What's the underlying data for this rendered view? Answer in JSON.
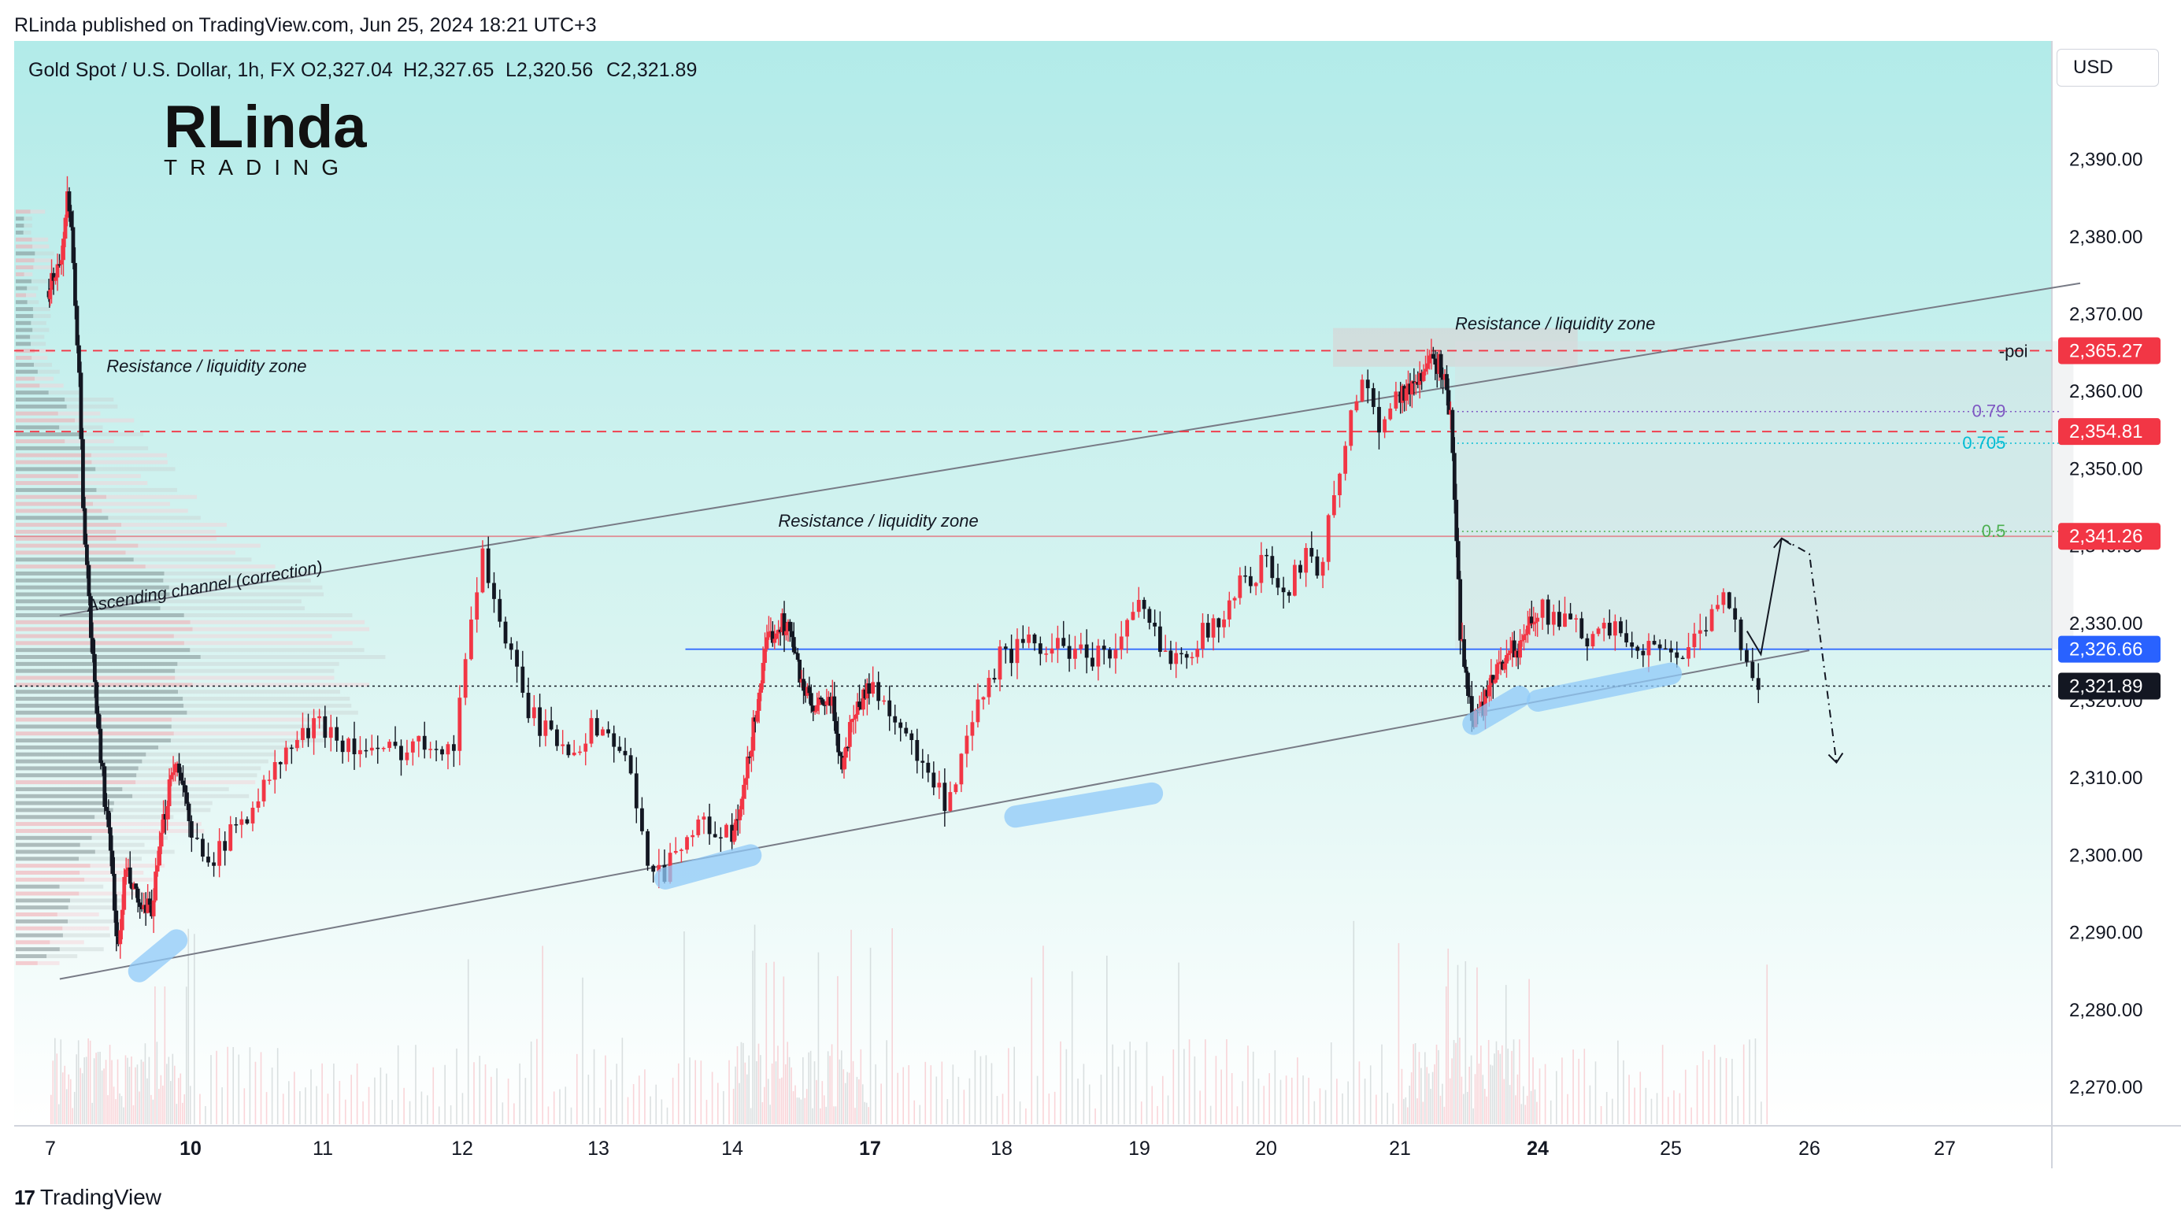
{
  "header": {
    "published": "RLinda published on TradingView.com, Jun 25, 2024 18:21 UTC+3"
  },
  "symbol": {
    "title": "Gold Spot / U.S. Dollar, 1h, FX",
    "open": "O2,327.04",
    "high": "H2,327.65",
    "low": "L2,320.56",
    "close": "C2,321.89"
  },
  "logo": {
    "line1": "RLinda",
    "line2": "TRADING"
  },
  "currency_button": "USD",
  "footer": {
    "brand": "TradingView"
  },
  "colors": {
    "bull": "#f23645",
    "bear": "#131722",
    "bg_top": "#b2ebe9",
    "bg_bottom": "#ffffff",
    "resistance": "#f23645",
    "price_line": "#2962ff",
    "support_highlight": "#90caf9",
    "poi_zone": "#d6d6d6"
  },
  "chart_data": {
    "type": "candlestick",
    "symbol": "XAUUSD",
    "timeframe": "1h",
    "ylim": [
      2262,
      2400
    ],
    "y_ticks": [
      2270,
      2280,
      2290,
      2300,
      2310,
      2320,
      2330,
      2340,
      2350,
      2360,
      2370,
      2380,
      2390
    ],
    "y_tick_labels": [
      "2,270.00",
      "2,280.00",
      "2,290.00",
      "2,300.00",
      "2,310.00",
      "2,320.00",
      "2,330.00",
      "2,340.00",
      "2,350.00",
      "2,360.00",
      "2,370.00",
      "2,380.00",
      "2,390.00"
    ],
    "x_labels": [
      {
        "label": "7",
        "day": 7,
        "bold": false
      },
      {
        "label": "10",
        "day": 10,
        "bold": true
      },
      {
        "label": "11",
        "day": 11,
        "bold": false
      },
      {
        "label": "12",
        "day": 12,
        "bold": false
      },
      {
        "label": "13",
        "day": 13,
        "bold": false
      },
      {
        "label": "14",
        "day": 14,
        "bold": false
      },
      {
        "label": "17",
        "day": 17,
        "bold": true
      },
      {
        "label": "18",
        "day": 18,
        "bold": false
      },
      {
        "label": "19",
        "day": 19,
        "bold": false
      },
      {
        "label": "20",
        "day": 20,
        "bold": false
      },
      {
        "label": "21",
        "day": 21,
        "bold": false
      },
      {
        "label": "24",
        "day": 24,
        "bold": true
      },
      {
        "label": "25",
        "day": 25,
        "bold": false
      },
      {
        "label": "26",
        "day": 26,
        "bold": false
      },
      {
        "label": "27",
        "day": 27,
        "bold": false
      }
    ],
    "price_path": [
      [
        6.9,
        2373
      ],
      [
        7.1,
        2375
      ],
      [
        7.25,
        2378
      ],
      [
        7.35,
        2385
      ],
      [
        7.45,
        2380
      ],
      [
        7.6,
        2364
      ],
      [
        7.7,
        2345
      ],
      [
        7.85,
        2330
      ],
      [
        8.0,
        2318
      ],
      [
        8.2,
        2305
      ],
      [
        8.35,
        2296
      ],
      [
        8.45,
        2287
      ],
      [
        8.6,
        2298
      ],
      [
        8.8,
        2295
      ],
      [
        9.0,
        2292
      ],
      [
        9.2,
        2294
      ],
      [
        9.4,
        2303
      ],
      [
        9.6,
        2312
      ],
      [
        9.8,
        2311
      ],
      [
        10.0,
        2302
      ],
      [
        10.2,
        2300
      ],
      [
        10.4,
        2305
      ],
      [
        10.6,
        2310
      ],
      [
        10.8,
        2315
      ],
      [
        11.0,
        2317
      ],
      [
        11.2,
        2314
      ],
      [
        11.4,
        2313
      ],
      [
        11.6,
        2314
      ],
      [
        11.8,
        2315
      ],
      [
        11.95,
        2314
      ],
      [
        12.05,
        2330
      ],
      [
        12.15,
        2339
      ],
      [
        12.3,
        2329
      ],
      [
        12.45,
        2320
      ],
      [
        12.6,
        2316
      ],
      [
        12.8,
        2314
      ],
      [
        13.0,
        2317
      ],
      [
        13.2,
        2313
      ],
      [
        13.35,
        2300
      ],
      [
        13.5,
        2298
      ],
      [
        13.6,
        2302
      ],
      [
        13.8,
        2304
      ],
      [
        14.0,
        2302
      ],
      [
        14.2,
        2306
      ],
      [
        14.4,
        2314
      ],
      [
        14.6,
        2322
      ],
      [
        14.8,
        2328
      ],
      [
        15.0,
        2330
      ],
      [
        15.2,
        2330
      ],
      [
        15.4,
        2325
      ],
      [
        15.6,
        2321
      ],
      [
        15.8,
        2318
      ],
      [
        16.0,
        2320
      ],
      [
        16.2,
        2319
      ],
      [
        16.4,
        2311
      ],
      [
        16.6,
        2318
      ],
      [
        16.8,
        2320
      ],
      [
        17.0,
        2322
      ],
      [
        17.2,
        2318
      ],
      [
        17.4,
        2311
      ],
      [
        17.6,
        2306
      ],
      [
        17.8,
        2318
      ],
      [
        18.0,
        2326
      ],
      [
        18.2,
        2327
      ],
      [
        18.4,
        2327
      ],
      [
        18.6,
        2326
      ],
      [
        18.8,
        2326
      ],
      [
        19.0,
        2332
      ],
      [
        19.2,
        2326
      ],
      [
        19.4,
        2327
      ],
      [
        19.6,
        2330
      ],
      [
        19.8,
        2335
      ],
      [
        20.0,
        2338
      ],
      [
        20.15,
        2333
      ],
      [
        20.3,
        2340
      ],
      [
        20.4,
        2337
      ],
      [
        20.55,
        2350
      ],
      [
        20.7,
        2362
      ],
      [
        20.85,
        2356
      ],
      [
        21.0,
        2360
      ],
      [
        21.2,
        2360
      ],
      [
        21.4,
        2362
      ],
      [
        21.6,
        2363
      ],
      [
        21.8,
        2364
      ],
      [
        21.95,
        2362
      ],
      [
        22.1,
        2357
      ],
      [
        22.2,
        2345
      ],
      [
        22.3,
        2330
      ],
      [
        22.45,
        2322
      ],
      [
        22.6,
        2318
      ],
      [
        22.8,
        2319
      ],
      [
        23.0,
        2322
      ],
      [
        23.2,
        2325
      ],
      [
        23.4,
        2327
      ],
      [
        23.6,
        2326
      ],
      [
        23.8,
        2330
      ],
      [
        24.0,
        2332
      ],
      [
        24.2,
        2330
      ],
      [
        24.4,
        2328
      ],
      [
        24.6,
        2329
      ],
      [
        24.8,
        2327
      ],
      [
        25.0,
        2326
      ],
      [
        25.2,
        2328
      ],
      [
        25.4,
        2333
      ],
      [
        25.55,
        2326
      ],
      [
        25.65,
        2322
      ]
    ],
    "levels": [
      {
        "name": "poi",
        "value": 2365.27,
        "label": "2,365.27",
        "tag": "poi",
        "style": "dashed-red"
      },
      {
        "name": "resistance-2",
        "value": 2354.81,
        "label": "2,354.81",
        "style": "dashed-red"
      },
      {
        "name": "resistance-1",
        "value": 2341.26,
        "label": "2,341.26",
        "style": "solid-red"
      },
      {
        "name": "last-price-line",
        "value": 2326.66,
        "label": "2,326.66",
        "style": "solid-blue"
      },
      {
        "name": "current-price",
        "value": 2321.89,
        "label": "2,321.89",
        "style": "dotted-dark"
      }
    ],
    "fib_levels": [
      {
        "ratio": "0.79",
        "value": 2357.4,
        "color": "#7e57c2"
      },
      {
        "ratio": "0.705",
        "value": 2353.3,
        "color": "#00bcd4"
      },
      {
        "ratio": "0.5",
        "value": 2341.9,
        "color": "#4caf50"
      }
    ],
    "annotations": [
      {
        "text": "Resistance / liquidity zone",
        "day": 8.2,
        "value": 2362.5
      },
      {
        "text": "Resistance / liquidity zone",
        "day": 22.2,
        "value": 2368.0
      },
      {
        "text": "Resistance / liquidity zone",
        "day": 15.0,
        "value": 2342.5
      },
      {
        "text": "Ascending channel (correction)",
        "day": 7.8,
        "value": 2331.5,
        "angle": -9.5
      }
    ],
    "channel": {
      "lower": [
        [
          7.2,
          2284
        ],
        [
          26.0,
          2326.5
        ]
      ],
      "upper": [
        [
          7.2,
          2331
        ],
        [
          28.0,
          2374
        ]
      ]
    },
    "poi_zone": {
      "x": [
        20.5,
        24.3
      ],
      "y": [
        2363.2,
        2368.2
      ]
    },
    "support_marks": [
      {
        "x": [
          8.9,
          9.7
        ],
        "y": [
          2285,
          2289
        ]
      },
      {
        "x": [
          13.5,
          14.4
        ],
        "y": [
          2297,
          2300
        ]
      },
      {
        "x": [
          18.1,
          19.1
        ],
        "y": [
          2305,
          2308
        ]
      },
      {
        "x": [
          22.6,
          23.6
        ],
        "y": [
          2317,
          2320.5
        ]
      },
      {
        "x": [
          24.0,
          25.0
        ],
        "y": [
          2320,
          2323.5
        ]
      }
    ],
    "projection": {
      "solid": [
        [
          25.55,
          2329
        ],
        [
          25.65,
          2326
        ],
        [
          25.8,
          2341
        ]
      ],
      "dashed": [
        [
          25.8,
          2341
        ],
        [
          26.0,
          2339
        ],
        [
          26.2,
          2312
        ]
      ]
    }
  }
}
